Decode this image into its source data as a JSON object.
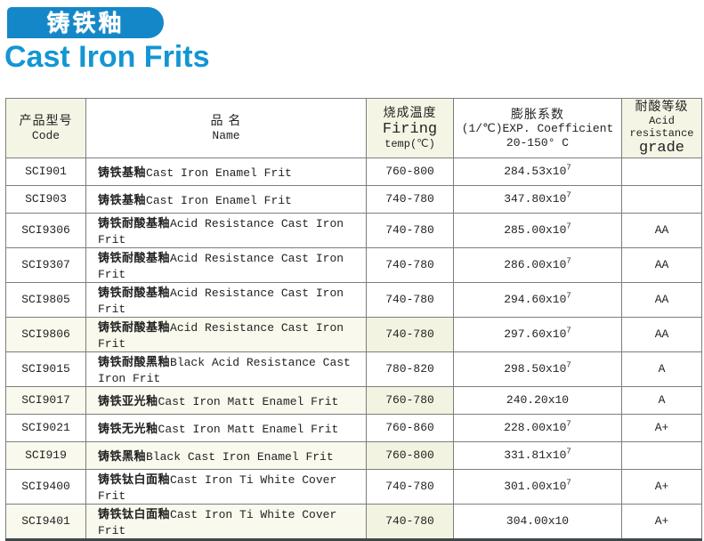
{
  "page": {
    "banner_title": "铸铁釉",
    "subtitle": "Cast Iron Frits",
    "colors": {
      "banner_blue": "#1487c8",
      "subtitle_blue": "#1296d4",
      "header_cream": "#f5f5e6",
      "row_shade_cream": "#f3f3e1",
      "bottom_bar": "#3e4848"
    }
  },
  "table": {
    "headers": {
      "code": {
        "zh": "产品型号",
        "en": "Code"
      },
      "name": {
        "zh": "品 名",
        "en": "Name"
      },
      "firing": {
        "zh": "烧成温度",
        "en": "Firing",
        "en2": "temp(℃)"
      },
      "coefficient": {
        "zh": "膨胀系数",
        "en": "(1/℃)EXP. Coefficient",
        "en2": "20-150° C"
      },
      "acid": {
        "zh": "耐酸等级",
        "en": "Acid resistance",
        "en2": "grade"
      }
    },
    "rows": [
      {
        "code": "SCI901",
        "name_zh": "铸铁基釉",
        "name_en": "Cast Iron Enamel Frit",
        "firing": "760-800",
        "coef": "284.53x10",
        "coef_exp": "7",
        "grade": "",
        "shaded": false
      },
      {
        "code": "SCI903",
        "name_zh": "铸铁基釉",
        "name_en": "Cast Iron Enamel Frit",
        "firing": "740-780",
        "coef": "347.80x10",
        "coef_exp": "7",
        "grade": "",
        "shaded": false
      },
      {
        "code": "SCI9306",
        "name_zh": "铸铁耐酸基釉",
        "name_en": "Acid Resistance Cast Iron Frit",
        "firing": "740-780",
        "coef": "285.00x10",
        "coef_exp": "7",
        "grade": "AA",
        "shaded": false
      },
      {
        "code": "SCI9307",
        "name_zh": "铸铁耐酸基釉",
        "name_en": "Acid Resistance Cast Iron Frit",
        "firing": "740-780",
        "coef": "286.00x10",
        "coef_exp": "7",
        "grade": "AA",
        "shaded": false
      },
      {
        "code": "SCI9805",
        "name_zh": "铸铁耐酸基釉",
        "name_en": "Acid Resistance Cast Iron Frit",
        "firing": "740-780",
        "coef": "294.60x10",
        "coef_exp": "7",
        "grade": "AA",
        "shaded": false
      },
      {
        "code": "SCI9806",
        "name_zh": "铸铁耐酸基釉",
        "name_en": "Acid Resistance Cast Iron Frit",
        "firing": "740-780",
        "coef": "297.60x10",
        "coef_exp": "7",
        "grade": "AA",
        "shaded": true
      },
      {
        "code": "SCI9015",
        "name_zh": "铸铁耐酸黑釉",
        "name_en": "Black Acid Resistance Cast Iron Frit",
        "firing": "780-820",
        "coef": "298.50x10",
        "coef_exp": "7",
        "grade": "A",
        "shaded": false
      },
      {
        "code": "SCI9017",
        "name_zh": "铸铁亚光釉",
        "name_en": "Cast Iron Matt Enamel Frit",
        "firing": "760-780",
        "coef": "240.20x10",
        "coef_exp": "",
        "grade": "A",
        "shaded": true
      },
      {
        "code": "SCI9021",
        "name_zh": "铸铁无光釉",
        "name_en": "Cast Iron Matt Enamel Frit",
        "firing": "760-860",
        "coef": "228.00x10",
        "coef_exp": "7",
        "grade": "A+",
        "shaded": false
      },
      {
        "code": "SCI919",
        "name_zh": "铸铁黑釉",
        "name_en": "Black Cast Iron Enamel Frit",
        "firing": "760-800",
        "coef": "331.81x10",
        "coef_exp": "7",
        "grade": "",
        "shaded": true
      },
      {
        "code": "SCI9400",
        "name_zh": "铸铁钛白面釉",
        "name_en": "Cast Iron Ti White Cover Frit",
        "firing": "740-780",
        "coef": "301.00x10",
        "coef_exp": "7",
        "grade": "A+",
        "shaded": false
      },
      {
        "code": "SCI9401",
        "name_zh": "铸铁钛白面釉",
        "name_en": "Cast Iron Ti White Cover Frit",
        "firing": "740-780",
        "coef": "304.00x10",
        "coef_exp": "",
        "grade": "A+",
        "shaded": true
      }
    ]
  }
}
